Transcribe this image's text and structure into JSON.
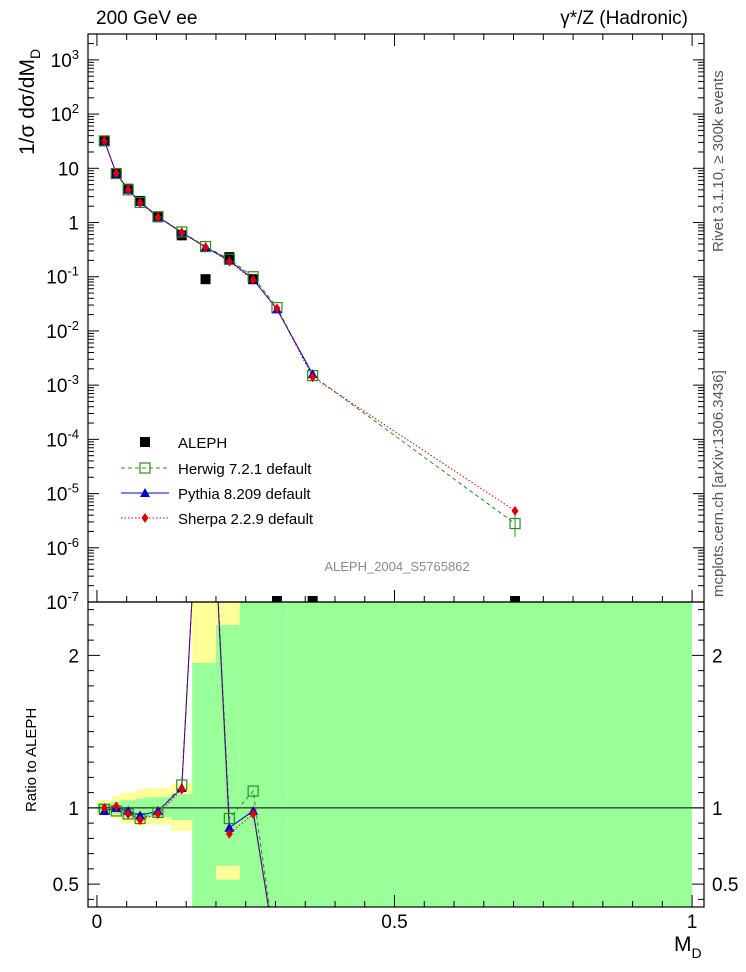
{
  "header": {
    "left": "200 GeV ee",
    "right": "γ*/Z (Hadronic)"
  },
  "side_labels": {
    "rivet": "Rivet 3.1.10, ≥ 300k events",
    "mcplots": "mcplots.cern.ch [arXiv:1306.3436]"
  },
  "analysis_id": "ALEPH_2004_S5765862",
  "chart_data": [
    {
      "type": "scatter",
      "panel": "main",
      "ylabel": "1/σ dσ/dM_D",
      "yscale": "log",
      "ylim": [
        1e-07,
        3000.0
      ],
      "ytick_labels": [
        "10^{-7}",
        "10^{-6}",
        "10^{-5}",
        "10^{-4}",
        "10^{-3}",
        "10^{-2}",
        "10^{-1}",
        "1",
        "10",
        "10^{2}",
        "10^{3}"
      ],
      "legend_position": "lower-left",
      "series": [
        {
          "name": "ALEPH",
          "color": "#000000",
          "marker": "filled-square",
          "x": [
            0.0125,
            0.0325,
            0.0525,
            0.0725,
            0.1025,
            0.1425,
            0.1825,
            0.2225,
            0.2625,
            0.3025,
            0.3625,
            0.7025
          ],
          "y": [
            32,
            8.1,
            4.2,
            2.5,
            1.3,
            0.58,
            0.09,
            0.23,
            0.09,
            1e-07,
            1e-07,
            1e-07
          ]
        },
        {
          "name": "Herwig 7.2.1 default",
          "color": "#2e8b20",
          "marker": "open-square",
          "line": "dashed",
          "x": [
            0.0125,
            0.0325,
            0.0525,
            0.0725,
            0.1025,
            0.1425,
            0.1825,
            0.2225,
            0.2625,
            0.3025,
            0.3625,
            0.7025
          ],
          "y": [
            32,
            8.0,
            4.0,
            2.35,
            1.27,
            0.67,
            0.36,
            0.21,
            0.1,
            0.027,
            0.0015,
            2.8e-06
          ]
        },
        {
          "name": "Pythia 8.209 default",
          "color": "#0000cc",
          "marker": "triangle",
          "line": "solid",
          "x": [
            0.0125,
            0.0325,
            0.0525,
            0.0725,
            0.1025,
            0.1425,
            0.1825,
            0.2225,
            0.2625,
            0.3025,
            0.3625
          ],
          "y": [
            32,
            8.1,
            4.05,
            2.4,
            1.28,
            0.66,
            0.35,
            0.2,
            0.09,
            0.025,
            0.0016
          ]
        },
        {
          "name": "Sherpa 2.2.9 default",
          "color": "#dd0000",
          "marker": "diamond",
          "line": "dotted",
          "x": [
            0.0125,
            0.0325,
            0.0525,
            0.0725,
            0.1025,
            0.1425,
            0.1825,
            0.2225,
            0.2625,
            0.3025,
            0.3625,
            0.7025
          ],
          "y": [
            32,
            8.1,
            4.0,
            2.3,
            1.25,
            0.65,
            0.35,
            0.19,
            0.087,
            0.026,
            0.0014,
            4.8e-06
          ]
        }
      ]
    },
    {
      "type": "line",
      "panel": "ratio",
      "ylabel": "Ratio to ALEPH",
      "xlabel": "M_D",
      "xlim": [
        0,
        1
      ],
      "ylim": [
        0.35,
        2.35
      ],
      "xtick_labels": [
        "0",
        "0.5",
        "1"
      ],
      "ytick_labels": [
        "0.5",
        "1",
        "2"
      ],
      "reference": 1,
      "uncertainty_bands": {
        "x_edges": [
          0.0,
          0.025,
          0.04,
          0.065,
          0.08,
          0.125,
          0.16,
          0.2,
          0.24,
          0.28,
          0.32,
          1.0
        ],
        "green_low": [
          0.97,
          0.96,
          0.94,
          0.93,
          0.94,
          0.92,
          0.35,
          0.35,
          0.35,
          0.35,
          0.35
        ],
        "green_high": [
          1.03,
          1.04,
          1.05,
          1.06,
          1.07,
          1.09,
          1.95,
          2.2,
          2.35,
          2.35,
          2.35
        ],
        "yellow_low": [
          0.95,
          0.93,
          0.9,
          0.88,
          0.89,
          0.85,
          0.77,
          0.35,
          0.35,
          0.35,
          0.35
        ],
        "yellow_high": [
          1.05,
          1.08,
          1.1,
          1.12,
          1.13,
          1.16,
          2.35,
          2.35,
          2.35,
          2.35,
          2.35
        ],
        "yellow_gap": [
          0.2,
          0.24,
          0.53,
          0.62
        ]
      },
      "series": [
        {
          "name": "Herwig 7.2.1 default",
          "color": "#2e8b20",
          "marker": "open-square",
          "line": "dashed",
          "x": [
            0.0125,
            0.0325,
            0.0525,
            0.0725,
            0.1025,
            0.1425,
            0.1825,
            0.2225,
            0.2625,
            0.3025
          ],
          "y": [
            0.99,
            0.98,
            0.96,
            0.93,
            0.97,
            1.15,
            4.0,
            0.93,
            1.11,
            0.0
          ]
        },
        {
          "name": "Pythia 8.209 default",
          "color": "#0000cc",
          "marker": "triangle",
          "line": "solid",
          "x": [
            0.0125,
            0.0325,
            0.0525,
            0.0725,
            0.1025,
            0.1425,
            0.1825,
            0.2225,
            0.2625,
            0.3025
          ],
          "y": [
            0.98,
            1.0,
            0.98,
            0.95,
            0.98,
            1.13,
            4.0,
            0.87,
            0.98,
            0.0
          ]
        },
        {
          "name": "Sherpa 2.2.9 default",
          "color": "#dd0000",
          "marker": "diamond",
          "line": "dotted",
          "x": [
            0.0125,
            0.0325,
            0.0525,
            0.0725,
            0.1025,
            0.1425,
            0.1825,
            0.2225,
            0.2625,
            0.3025
          ],
          "y": [
            1.0,
            1.01,
            0.96,
            0.92,
            0.96,
            1.12,
            4.0,
            0.83,
            0.96,
            0.0
          ]
        }
      ]
    }
  ]
}
